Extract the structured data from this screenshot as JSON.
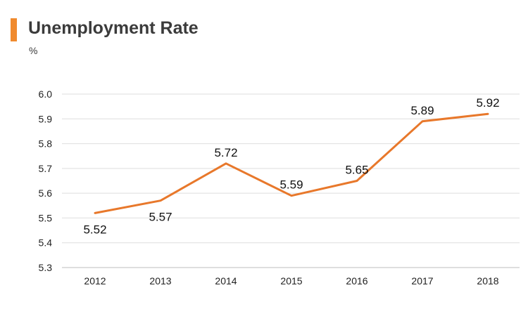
{
  "header": {
    "title": "Unemployment Rate",
    "unit": "%",
    "accent_color": "#f08a2e"
  },
  "chart_data": {
    "type": "line",
    "title": "Unemployment Rate",
    "xlabel": "",
    "ylabel": "%",
    "categories": [
      "2012",
      "2013",
      "2014",
      "2015",
      "2016",
      "2017",
      "2018"
    ],
    "series": [
      {
        "values": [
          5.52,
          5.57,
          5.72,
          5.59,
          5.65,
          5.89,
          5.92
        ],
        "color": "#e8782b"
      }
    ],
    "data_labels": [
      "5.52",
      "5.57",
      "5.72",
      "5.59",
      "5.65",
      "5.89",
      "5.92"
    ],
    "ylim": [
      5.3,
      6.0
    ],
    "yticks": [
      "5.3",
      "5.4",
      "5.5",
      "5.6",
      "5.7",
      "5.8",
      "5.9",
      "6.0"
    ],
    "grid": true,
    "legend": false
  }
}
